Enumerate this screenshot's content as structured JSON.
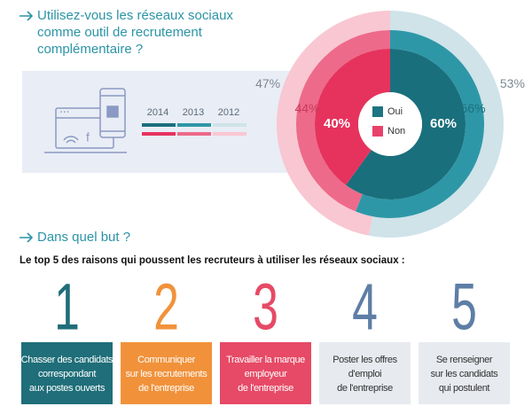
{
  "question": "Utilisez-vous les réseaux sociaux comme outil de recrutement complémentaire ?",
  "chart_data": {
    "type": "concentric-donut",
    "categories": [
      "2014",
      "2013",
      "2012"
    ],
    "series": [
      {
        "name": "Oui",
        "color": "#1d7482",
        "colors": [
          "#1a6f7d",
          "#2e97a7",
          "#cfe3e9"
        ],
        "values": [
          60,
          56,
          53
        ],
        "value_labels": [
          "60%",
          "56%",
          "53%"
        ]
      },
      {
        "name": "Non",
        "color": "#e8426a",
        "colors": [
          "#e6335d",
          "#ee6a8a",
          "#f8c7d2"
        ],
        "values": [
          40,
          44,
          47
        ],
        "value_labels": [
          "40%",
          "44%",
          "47%"
        ]
      }
    ]
  },
  "section2": {
    "heading": "Dans quel but ?",
    "subtitle": "Le top 5 des raisons qui poussent les recruteurs à utiliser les réseaux sociaux :",
    "reasons": [
      {
        "number": "1",
        "lines": [
          "Chasser des candidats",
          "correspondant",
          "aux postes ouverts"
        ],
        "color": "#1f6e79"
      },
      {
        "number": "2",
        "lines": [
          "Communiquer",
          "sur les recrutements",
          "de l'entreprise"
        ],
        "color": "#f1923b"
      },
      {
        "number": "3",
        "lines": [
          "Travailler la marque",
          "employeur",
          "de l'entreprise"
        ],
        "color": "#e64a66"
      },
      {
        "number": "4",
        "lines": [
          "Poster les offres",
          "d'emploi",
          "de l'entreprise"
        ],
        "color": "#5e7ea6"
      },
      {
        "number": "5",
        "lines": [
          "Se renseigner",
          "sur les candidats",
          "qui postulent"
        ],
        "color": "#5e7ea6"
      }
    ]
  }
}
